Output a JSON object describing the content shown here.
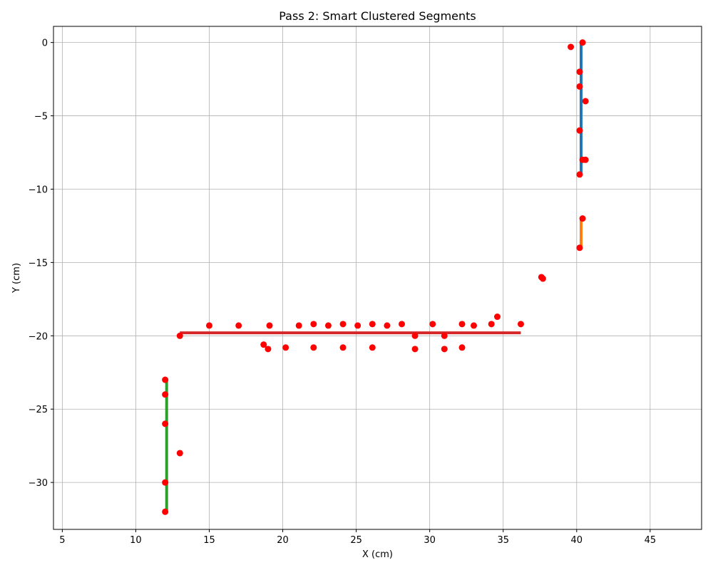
{
  "chart_data": {
    "type": "scatter",
    "title": "Pass 2: Smart Clustered Segments",
    "xlabel": "X (cm)",
    "ylabel": "Y (cm)",
    "xlim": [
      4.4,
      48.5
    ],
    "ylim": [
      -33.2,
      1.1
    ],
    "xticks": [
      5,
      10,
      15,
      20,
      25,
      30,
      35,
      40,
      45
    ],
    "yticks": [
      0,
      -5,
      -10,
      -15,
      -20,
      -25,
      -30
    ],
    "grid": true,
    "points": {
      "color": "#ff0000",
      "x": [
        40.4,
        39.6,
        40.2,
        40.2,
        40.6,
        40.2,
        40.4,
        40.6,
        40.2,
        40.4,
        40.2,
        37.6,
        37.7,
        13.0,
        15.0,
        17.0,
        19.1,
        21.1,
        22.1,
        23.1,
        24.1,
        25.1,
        26.1,
        27.1,
        28.1,
        30.2,
        32.2,
        33.0,
        34.2,
        34.6,
        36.2,
        18.7,
        19.0,
        20.2,
        22.1,
        24.1,
        26.1,
        29.0,
        29.0,
        31.0,
        31.0,
        32.2,
        12.0,
        12.0,
        12.0,
        13.0,
        12.0,
        12.0
      ],
      "y": [
        0.0,
        -0.3,
        -2.0,
        -3.0,
        -4.0,
        -6.0,
        -8.0,
        -8.0,
        -9.0,
        -12.0,
        -14.0,
        -16.0,
        -16.1,
        -20.0,
        -19.3,
        -19.3,
        -19.3,
        -19.3,
        -19.2,
        -19.3,
        -19.2,
        -19.3,
        -19.2,
        -19.3,
        -19.2,
        -19.2,
        -19.2,
        -19.3,
        -19.2,
        -18.7,
        -19.2,
        -20.6,
        -20.9,
        -20.8,
        -20.8,
        -20.8,
        -20.8,
        -20.0,
        -20.9,
        -20.0,
        -20.9,
        -20.8,
        -23.0,
        -24.0,
        -26.0,
        -28.0,
        -30.0,
        -32.0
      ]
    },
    "segments": [
      {
        "color": "#1f77b4",
        "x": [
          40.3,
          40.3
        ],
        "y": [
          0.0,
          -9.0
        ]
      },
      {
        "color": "#ff7f0e",
        "x": [
          40.3,
          40.3
        ],
        "y": [
          -12.1,
          -14.0
        ]
      },
      {
        "color": "#1f77b4",
        "x": [
          37.6,
          37.7
        ],
        "y": [
          -16.0,
          -16.1
        ]
      },
      {
        "color": "#d62728",
        "x": [
          13.0,
          36.2
        ],
        "y": [
          -19.8,
          -19.8
        ]
      },
      {
        "color": "#2ca02c",
        "x": [
          12.1,
          12.1
        ],
        "y": [
          -23.0,
          -32.0
        ]
      }
    ]
  }
}
